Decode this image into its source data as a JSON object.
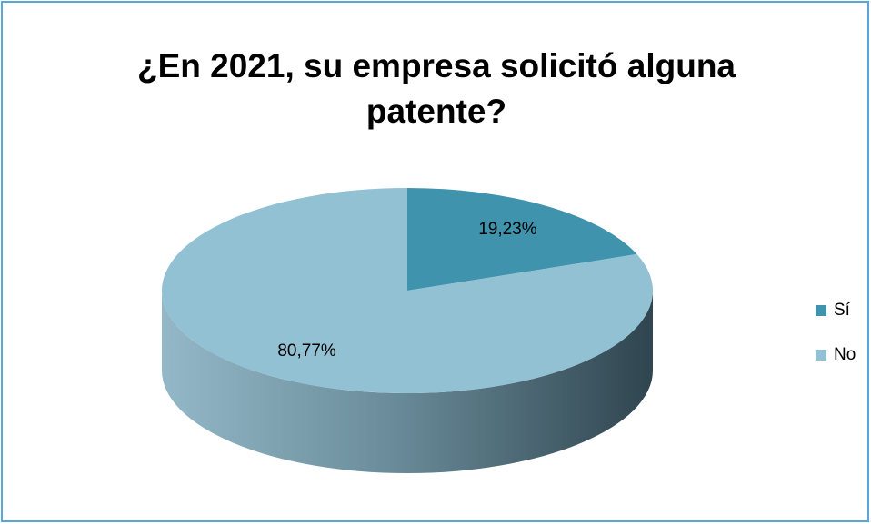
{
  "chart_data": {
    "type": "pie3d",
    "title": [
      "¿En 2021, su empresa solicitó alguna",
      "patente?"
    ],
    "categories": [
      "Sí",
      "No"
    ],
    "values": [
      19.23,
      80.77
    ],
    "value_labels": [
      "19,23%",
      "80,77%"
    ],
    "colors": [
      "#3f93ac",
      "#92c1d4"
    ],
    "legend": "right"
  }
}
